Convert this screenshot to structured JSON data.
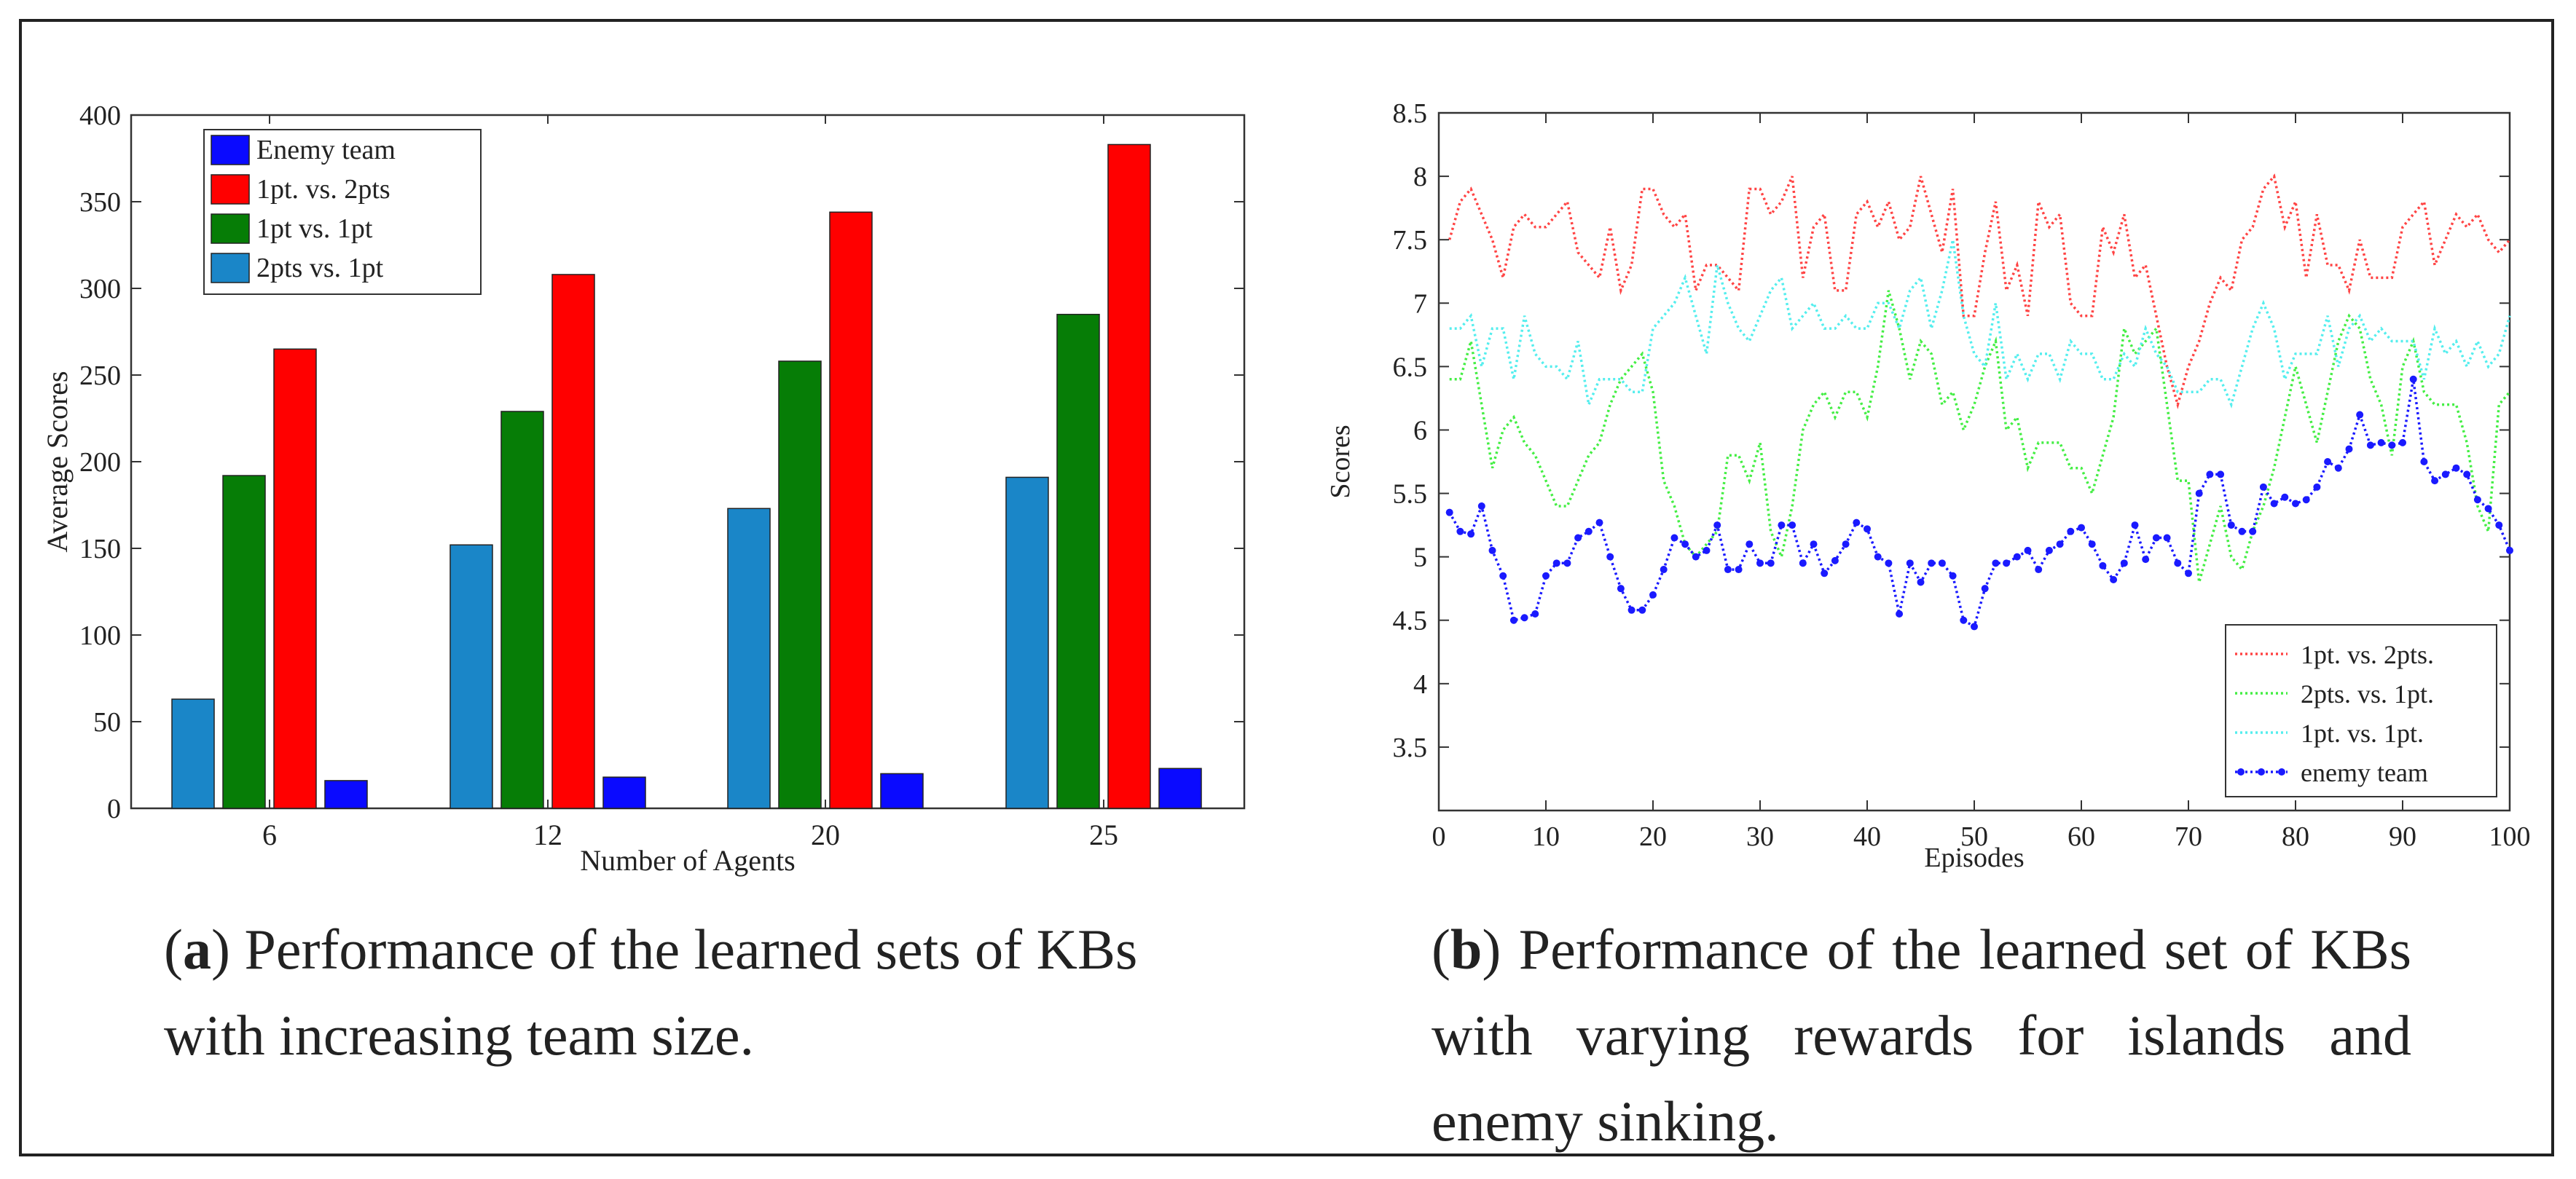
{
  "caption_a": {
    "label": "a",
    "text": ") Performance of the learned sets of KBs with increasing team size."
  },
  "caption_b": {
    "label": "b",
    "text": ") Performance of the learned set of KBs with varying rewards for islands and enemy sinking."
  },
  "chart_data": [
    {
      "type": "bar",
      "xlabel": "Number of Agents",
      "ylabel": "Average Scores",
      "ylim": [
        0,
        400
      ],
      "yticks": [
        0,
        50,
        100,
        150,
        200,
        250,
        300,
        350,
        400
      ],
      "categories": [
        "6",
        "12",
        "20",
        "25"
      ],
      "series": [
        {
          "name": "2pts vs. 1pt",
          "color": "#1a86c8",
          "values": [
            63,
            152,
            173,
            191
          ]
        },
        {
          "name": "1pt vs. 1pt",
          "color": "#067d06",
          "values": [
            192,
            229,
            258,
            285
          ]
        },
        {
          "name": "1pt. vs. 2pts",
          "color": "#ff0000",
          "values": [
            265,
            308,
            344,
            383
          ]
        },
        {
          "name": "Enemy team",
          "color": "#0a0aff",
          "values": [
            16,
            18,
            20,
            23
          ]
        }
      ],
      "legend": {
        "placement": "top-left",
        "order": [
          "Enemy team",
          "1pt. vs. 2pts",
          "1pt vs. 1pt",
          "2pts vs. 1pt"
        ]
      }
    },
    {
      "type": "line",
      "xlabel": "Episodes",
      "ylabel": "Scores",
      "xlim": [
        0,
        100
      ],
      "ylim": [
        3.0,
        8.5
      ],
      "xticks": [
        0,
        10,
        20,
        30,
        40,
        50,
        60,
        70,
        80,
        90,
        100
      ],
      "yticks": [
        "3.5",
        "4",
        "4.5",
        "5",
        "5.5",
        "6",
        "6.5",
        "7",
        "7.5",
        "8",
        "8.5"
      ],
      "x": [
        1,
        2,
        3,
        4,
        5,
        6,
        7,
        8,
        9,
        10,
        11,
        12,
        13,
        14,
        15,
        16,
        17,
        18,
        19,
        20,
        21,
        22,
        23,
        24,
        25,
        26,
        27,
        28,
        29,
        30,
        31,
        32,
        33,
        34,
        35,
        36,
        37,
        38,
        39,
        40,
        41,
        42,
        43,
        44,
        45,
        46,
        47,
        48,
        49,
        50,
        51,
        52,
        53,
        54,
        55,
        56,
        57,
        58,
        59,
        60,
        61,
        62,
        63,
        64,
        65,
        66,
        67,
        68,
        69,
        70,
        71,
        72,
        73,
        74,
        75,
        76,
        77,
        78,
        79,
        80,
        81,
        82,
        83,
        84,
        85,
        86,
        87,
        88,
        89,
        90,
        91,
        92,
        93,
        94,
        95,
        96,
        97,
        98,
        99,
        100
      ],
      "series": [
        {
          "name": "1pt. vs. 2pts.",
          "color": "#ff4444",
          "style": "dotted",
          "values": [
            7.5,
            7.8,
            7.9,
            7.7,
            7.5,
            7.2,
            7.6,
            7.7,
            7.6,
            7.6,
            7.7,
            7.8,
            7.4,
            7.3,
            7.2,
            7.6,
            7.1,
            7.3,
            7.9,
            7.9,
            7.7,
            7.6,
            7.7,
            7.1,
            7.3,
            7.3,
            7.2,
            7.1,
            7.9,
            7.9,
            7.7,
            7.8,
            8.0,
            7.2,
            7.6,
            7.7,
            7.1,
            7.1,
            7.7,
            7.8,
            7.6,
            7.8,
            7.5,
            7.6,
            8.0,
            7.7,
            7.4,
            7.9,
            6.9,
            6.9,
            7.4,
            7.8,
            7.1,
            7.3,
            6.9,
            7.8,
            7.6,
            7.7,
            7.0,
            6.9,
            6.9,
            7.6,
            7.4,
            7.7,
            7.2,
            7.3,
            6.9,
            6.5,
            6.2,
            6.5,
            6.7,
            7.0,
            7.2,
            7.1,
            7.5,
            7.6,
            7.9,
            8.0,
            7.6,
            7.8,
            7.2,
            7.7,
            7.3,
            7.3,
            7.1,
            7.5,
            7.2,
            7.2,
            7.2,
            7.6,
            7.7,
            7.8,
            7.3,
            7.5,
            7.7,
            7.6,
            7.7,
            7.5,
            7.4,
            7.5
          ]
        },
        {
          "name": "2pts. vs. 1pt.",
          "color": "#44ee44",
          "style": "dotted",
          "values": [
            6.4,
            6.4,
            6.7,
            6.2,
            5.7,
            6.0,
            6.1,
            5.9,
            5.8,
            5.6,
            5.4,
            5.4,
            5.6,
            5.8,
            5.9,
            6.2,
            6.4,
            6.5,
            6.6,
            6.3,
            5.6,
            5.4,
            5.1,
            5.0,
            5.1,
            5.2,
            5.8,
            5.8,
            5.6,
            5.9,
            5.2,
            5.0,
            5.4,
            6.0,
            6.2,
            6.3,
            6.1,
            6.3,
            6.3,
            6.1,
            6.5,
            7.1,
            6.8,
            6.4,
            6.7,
            6.6,
            6.2,
            6.3,
            6.0,
            6.2,
            6.5,
            6.7,
            6.0,
            6.1,
            5.7,
            5.9,
            5.9,
            5.9,
            5.7,
            5.7,
            5.5,
            5.8,
            6.1,
            6.8,
            6.6,
            6.7,
            6.8,
            6.2,
            5.6,
            5.6,
            4.8,
            5.1,
            5.4,
            5.0,
            4.9,
            5.2,
            5.4,
            5.7,
            6.1,
            6.5,
            6.2,
            5.9,
            6.3,
            6.7,
            6.9,
            6.8,
            6.4,
            6.2,
            5.8,
            6.5,
            6.7,
            6.3,
            6.2,
            6.2,
            6.2,
            5.9,
            5.4,
            5.2,
            6.2,
            6.3
          ]
        },
        {
          "name": "1pt. vs. 1pt.",
          "color": "#55eeee",
          "style": "dotted",
          "values": [
            6.8,
            6.8,
            6.9,
            6.5,
            6.8,
            6.8,
            6.4,
            6.9,
            6.6,
            6.5,
            6.5,
            6.4,
            6.7,
            6.2,
            6.4,
            6.4,
            6.4,
            6.3,
            6.3,
            6.8,
            6.9,
            7.0,
            7.2,
            6.9,
            6.6,
            7.3,
            7.0,
            6.8,
            6.7,
            6.9,
            7.1,
            7.2,
            6.8,
            6.9,
            7.0,
            6.8,
            6.8,
            6.9,
            6.8,
            6.8,
            7.0,
            7.0,
            6.8,
            7.1,
            7.2,
            6.8,
            7.1,
            7.5,
            6.9,
            6.6,
            6.5,
            7.0,
            6.4,
            6.6,
            6.4,
            6.6,
            6.6,
            6.4,
            6.7,
            6.6,
            6.6,
            6.4,
            6.4,
            6.6,
            6.5,
            6.8,
            6.6,
            6.5,
            6.3,
            6.3,
            6.3,
            6.4,
            6.4,
            6.2,
            6.5,
            6.8,
            7.0,
            6.8,
            6.4,
            6.6,
            6.6,
            6.6,
            6.9,
            6.5,
            6.8,
            6.9,
            6.7,
            6.8,
            6.7,
            6.7,
            6.7,
            6.4,
            6.8,
            6.6,
            6.7,
            6.5,
            6.7,
            6.5,
            6.6,
            6.9
          ]
        },
        {
          "name": "enemy team",
          "color": "#1a1aff",
          "style": "dotted-markers",
          "values": [
            5.35,
            5.2,
            5.18,
            5.4,
            5.05,
            4.85,
            4.5,
            4.52,
            4.55,
            4.85,
            4.95,
            4.95,
            5.15,
            5.2,
            5.27,
            5.0,
            4.75,
            4.58,
            4.58,
            4.7,
            4.9,
            5.15,
            5.1,
            5.0,
            5.05,
            5.25,
            4.9,
            4.9,
            5.1,
            4.95,
            4.95,
            5.25,
            5.25,
            4.95,
            5.1,
            4.87,
            4.97,
            5.1,
            5.27,
            5.22,
            5.0,
            4.95,
            4.55,
            4.95,
            4.8,
            4.95,
            4.95,
            4.85,
            4.5,
            4.45,
            4.75,
            4.95,
            4.95,
            5.0,
            5.05,
            4.9,
            5.05,
            5.1,
            5.2,
            5.23,
            5.1,
            4.93,
            4.82,
            4.95,
            5.25,
            4.98,
            5.15,
            5.15,
            4.95,
            4.87,
            5.5,
            5.65,
            5.65,
            5.25,
            5.2,
            5.2,
            5.55,
            5.42,
            5.47,
            5.42,
            5.45,
            5.55,
            5.75,
            5.7,
            5.85,
            6.12,
            5.88,
            5.9,
            5.88,
            5.9,
            6.4,
            5.75,
            5.6,
            5.65,
            5.7,
            5.65,
            5.45,
            5.38,
            5.25,
            5.05
          ]
        }
      ],
      "legend": {
        "placement": "bottom-right"
      }
    }
  ]
}
